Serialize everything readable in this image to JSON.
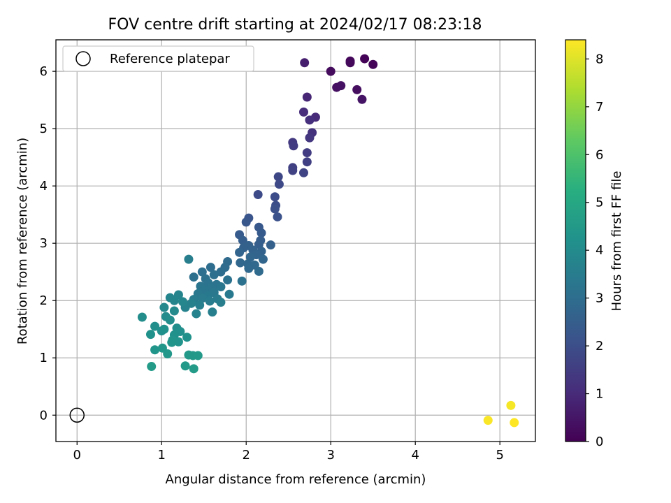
{
  "chart_data": {
    "type": "scatter",
    "title": "FOV centre drift starting at 2024/02/17 08:23:18",
    "xlabel": "Angular distance from reference (arcmin)",
    "ylabel": "Rotation from reference (arcmin)",
    "xlim": [
      -0.25,
      5.42
    ],
    "ylim": [
      -0.46,
      6.55
    ],
    "xticks": [
      0,
      1,
      2,
      3,
      4,
      5
    ],
    "yticks": [
      0,
      1,
      2,
      3,
      4,
      5,
      6
    ],
    "grid": true,
    "legend": {
      "placement": "top-left",
      "entries": [
        {
          "label": "Reference platepar",
          "marker": "open-circle",
          "x": 0,
          "y": 0
        }
      ]
    },
    "colorbar": {
      "label": "Hours from first FF file",
      "colormap": "viridis",
      "range": [
        0,
        8.4
      ],
      "ticks": [
        0,
        1,
        2,
        3,
        4,
        5,
        6,
        7,
        8
      ]
    },
    "points": [
      {
        "x": 3.4,
        "y": 6.22,
        "c": 0.05
      },
      {
        "x": 3.5,
        "y": 6.12,
        "c": 0.1
      },
      {
        "x": 3.23,
        "y": 6.18,
        "c": 0.15
      },
      {
        "x": 3.23,
        "y": 6.15,
        "c": 0.2
      },
      {
        "x": 3.0,
        "y": 6.0,
        "c": 0.25
      },
      {
        "x": 3.31,
        "y": 5.68,
        "c": 0.3
      },
      {
        "x": 3.07,
        "y": 5.72,
        "c": 0.35
      },
      {
        "x": 3.12,
        "y": 5.75,
        "c": 0.4
      },
      {
        "x": 3.37,
        "y": 5.51,
        "c": 0.45
      },
      {
        "x": 2.69,
        "y": 6.15,
        "c": 0.7
      },
      {
        "x": 2.72,
        "y": 5.55,
        "c": 0.9
      },
      {
        "x": 2.82,
        "y": 5.2,
        "c": 1.0
      },
      {
        "x": 2.68,
        "y": 5.29,
        "c": 1.05
      },
      {
        "x": 2.75,
        "y": 5.15,
        "c": 1.1
      },
      {
        "x": 2.78,
        "y": 4.93,
        "c": 1.2
      },
      {
        "x": 2.75,
        "y": 4.84,
        "c": 1.3
      },
      {
        "x": 2.55,
        "y": 4.76,
        "c": 1.4
      },
      {
        "x": 2.56,
        "y": 4.7,
        "c": 1.45
      },
      {
        "x": 2.72,
        "y": 4.58,
        "c": 1.5
      },
      {
        "x": 2.72,
        "y": 4.42,
        "c": 1.55
      },
      {
        "x": 2.55,
        "y": 4.32,
        "c": 1.6
      },
      {
        "x": 2.55,
        "y": 4.27,
        "c": 1.65
      },
      {
        "x": 2.68,
        "y": 4.23,
        "c": 1.7
      },
      {
        "x": 2.38,
        "y": 4.16,
        "c": 1.8
      },
      {
        "x": 2.39,
        "y": 4.03,
        "c": 1.85
      },
      {
        "x": 2.14,
        "y": 3.85,
        "c": 1.9
      },
      {
        "x": 2.34,
        "y": 3.81,
        "c": 1.95
      },
      {
        "x": 2.35,
        "y": 3.66,
        "c": 2.0
      },
      {
        "x": 2.34,
        "y": 3.6,
        "c": 2.05
      },
      {
        "x": 2.37,
        "y": 3.46,
        "c": 2.1
      },
      {
        "x": 2.03,
        "y": 3.44,
        "c": 2.2
      },
      {
        "x": 2.0,
        "y": 3.37,
        "c": 2.25
      },
      {
        "x": 2.15,
        "y": 3.28,
        "c": 2.3
      },
      {
        "x": 2.18,
        "y": 3.18,
        "c": 2.35
      },
      {
        "x": 1.92,
        "y": 3.15,
        "c": 2.4
      },
      {
        "x": 2.17,
        "y": 3.05,
        "c": 2.45
      },
      {
        "x": 1.96,
        "y": 3.05,
        "c": 2.5
      },
      {
        "x": 2.15,
        "y": 2.98,
        "c": 2.5
      },
      {
        "x": 2.29,
        "y": 2.97,
        "c": 2.55
      },
      {
        "x": 2.03,
        "y": 2.96,
        "c": 2.6
      },
      {
        "x": 1.97,
        "y": 2.92,
        "c": 2.6
      },
      {
        "x": 2.08,
        "y": 2.88,
        "c": 2.65
      },
      {
        "x": 2.18,
        "y": 2.86,
        "c": 2.65
      },
      {
        "x": 1.92,
        "y": 2.84,
        "c": 2.7
      },
      {
        "x": 2.12,
        "y": 2.8,
        "c": 2.7
      },
      {
        "x": 2.05,
        "y": 2.76,
        "c": 2.75
      },
      {
        "x": 2.2,
        "y": 2.72,
        "c": 2.75
      },
      {
        "x": 1.93,
        "y": 2.66,
        "c": 2.8
      },
      {
        "x": 2.02,
        "y": 2.64,
        "c": 2.8
      },
      {
        "x": 2.1,
        "y": 2.62,
        "c": 2.85
      },
      {
        "x": 2.03,
        "y": 2.56,
        "c": 2.85
      },
      {
        "x": 2.15,
        "y": 2.51,
        "c": 2.9
      },
      {
        "x": 1.78,
        "y": 2.68,
        "c": 2.9
      },
      {
        "x": 1.75,
        "y": 2.58,
        "c": 2.95
      },
      {
        "x": 1.58,
        "y": 2.58,
        "c": 3.0
      },
      {
        "x": 1.7,
        "y": 2.5,
        "c": 3.0
      },
      {
        "x": 1.48,
        "y": 2.5,
        "c": 3.05
      },
      {
        "x": 1.62,
        "y": 2.45,
        "c": 3.05
      },
      {
        "x": 1.38,
        "y": 2.41,
        "c": 3.1
      },
      {
        "x": 1.52,
        "y": 2.38,
        "c": 3.1
      },
      {
        "x": 1.78,
        "y": 2.36,
        "c": 3.15
      },
      {
        "x": 1.95,
        "y": 2.34,
        "c": 3.15
      },
      {
        "x": 1.55,
        "y": 2.31,
        "c": 3.2
      },
      {
        "x": 1.65,
        "y": 2.28,
        "c": 3.2
      },
      {
        "x": 1.46,
        "y": 2.25,
        "c": 3.25
      },
      {
        "x": 1.58,
        "y": 2.22,
        "c": 3.25
      },
      {
        "x": 1.7,
        "y": 2.24,
        "c": 3.3
      },
      {
        "x": 1.5,
        "y": 2.18,
        "c": 3.3
      },
      {
        "x": 1.62,
        "y": 2.14,
        "c": 3.35
      },
      {
        "x": 1.43,
        "y": 2.12,
        "c": 3.35
      },
      {
        "x": 1.8,
        "y": 2.11,
        "c": 3.4
      },
      {
        "x": 1.55,
        "y": 2.08,
        "c": 3.4
      },
      {
        "x": 1.48,
        "y": 2.04,
        "c": 3.45
      },
      {
        "x": 1.66,
        "y": 2.03,
        "c": 3.45
      },
      {
        "x": 1.38,
        "y": 2.02,
        "c": 3.5
      },
      {
        "x": 1.57,
        "y": 1.99,
        "c": 3.5
      },
      {
        "x": 1.7,
        "y": 1.97,
        "c": 3.55
      },
      {
        "x": 1.32,
        "y": 2.72,
        "c": 3.55
      },
      {
        "x": 1.45,
        "y": 1.92,
        "c": 3.6
      },
      {
        "x": 1.6,
        "y": 1.8,
        "c": 3.6
      },
      {
        "x": 1.35,
        "y": 1.95,
        "c": 3.65
      },
      {
        "x": 1.28,
        "y": 1.88,
        "c": 3.7
      },
      {
        "x": 1.41,
        "y": 1.77,
        "c": 3.7
      },
      {
        "x": 1.2,
        "y": 2.1,
        "c": 3.75
      },
      {
        "x": 1.1,
        "y": 2.05,
        "c": 3.8
      },
      {
        "x": 1.15,
        "y": 2.0,
        "c": 3.8
      },
      {
        "x": 1.25,
        "y": 1.98,
        "c": 3.85
      },
      {
        "x": 1.03,
        "y": 1.88,
        "c": 3.9
      },
      {
        "x": 1.15,
        "y": 1.82,
        "c": 3.95
      },
      {
        "x": 1.05,
        "y": 1.72,
        "c": 4.0
      },
      {
        "x": 0.77,
        "y": 1.71,
        "c": 4.05
      },
      {
        "x": 1.1,
        "y": 1.66,
        "c": 4.05
      },
      {
        "x": 0.92,
        "y": 1.55,
        "c": 4.1
      },
      {
        "x": 1.18,
        "y": 1.52,
        "c": 4.1
      },
      {
        "x": 1.22,
        "y": 1.46,
        "c": 4.15
      },
      {
        "x": 1.0,
        "y": 1.47,
        "c": 4.15
      },
      {
        "x": 1.03,
        "y": 1.5,
        "c": 4.2
      },
      {
        "x": 1.15,
        "y": 1.4,
        "c": 4.2
      },
      {
        "x": 0.87,
        "y": 1.41,
        "c": 4.25
      },
      {
        "x": 1.3,
        "y": 1.36,
        "c": 4.25
      },
      {
        "x": 1.13,
        "y": 1.31,
        "c": 4.3
      },
      {
        "x": 1.2,
        "y": 1.28,
        "c": 4.3
      },
      {
        "x": 1.12,
        "y": 1.27,
        "c": 4.35
      },
      {
        "x": 0.92,
        "y": 1.14,
        "c": 4.35
      },
      {
        "x": 1.01,
        "y": 1.17,
        "c": 4.4
      },
      {
        "x": 1.07,
        "y": 1.07,
        "c": 4.4
      },
      {
        "x": 1.32,
        "y": 1.05,
        "c": 4.45
      },
      {
        "x": 1.37,
        "y": 1.04,
        "c": 4.45
      },
      {
        "x": 1.43,
        "y": 1.04,
        "c": 4.5
      },
      {
        "x": 1.28,
        "y": 0.86,
        "c": 4.5
      },
      {
        "x": 0.88,
        "y": 0.85,
        "c": 4.55
      },
      {
        "x": 1.38,
        "y": 0.81,
        "c": 4.55
      },
      {
        "x": 5.13,
        "y": 0.17,
        "c": 8.3
      },
      {
        "x": 4.86,
        "y": -0.09,
        "c": 8.35
      },
      {
        "x": 5.17,
        "y": -0.13,
        "c": 8.4
      }
    ]
  }
}
